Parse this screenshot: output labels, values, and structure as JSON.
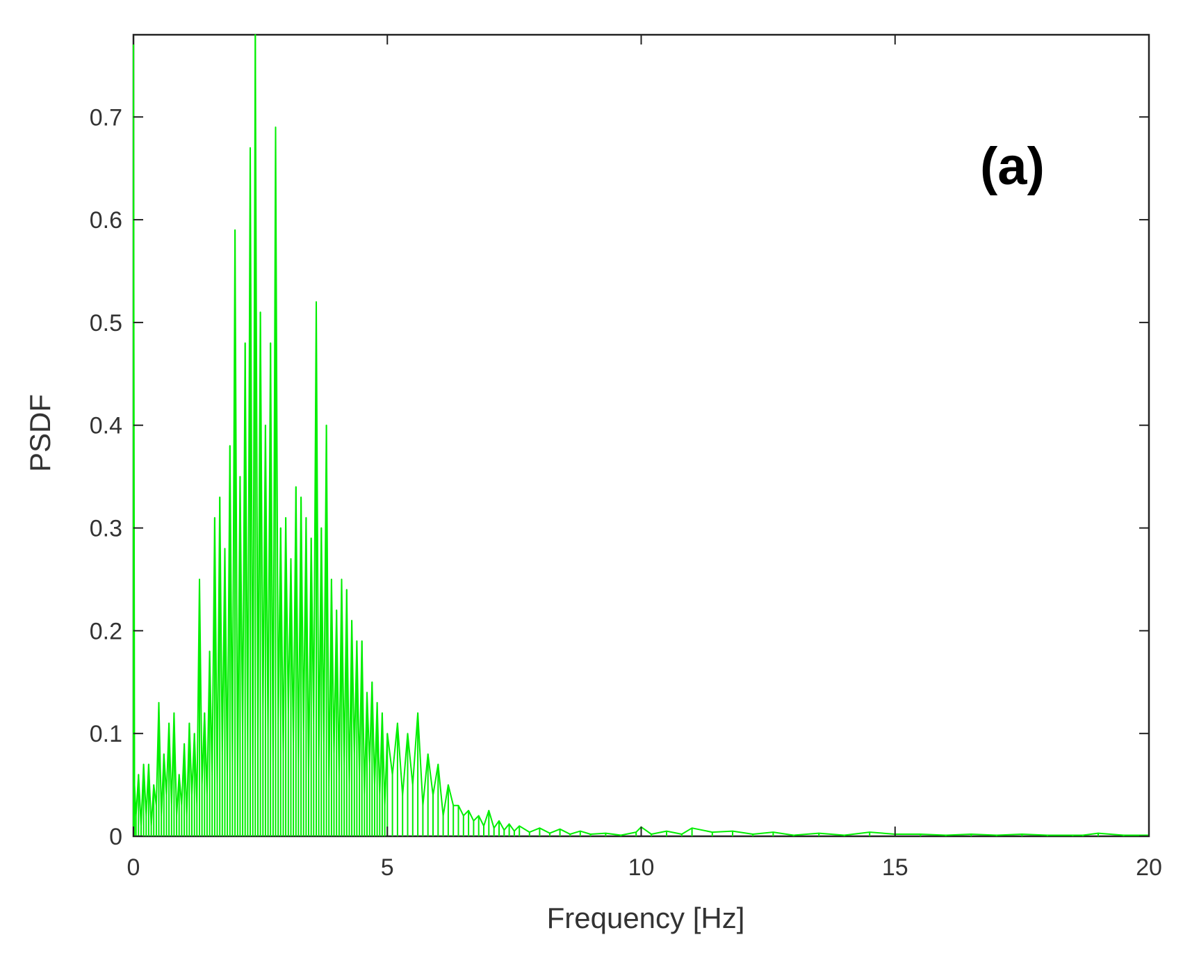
{
  "chart_data": {
    "type": "line",
    "title": "",
    "annotation": "(a)",
    "xlabel": "Frequency [Hz]",
    "ylabel": "PSDF",
    "xlim": [
      0,
      20
    ],
    "ylim": [
      0,
      0.78
    ],
    "grid": false,
    "x_ticks": [
      0,
      5,
      10,
      15,
      20
    ],
    "y_ticks": [
      0,
      0.1,
      0.2,
      0.3,
      0.4,
      0.5,
      0.6,
      0.7
    ],
    "x_tick_labels": [
      "0",
      "5",
      "10",
      "15",
      "20"
    ],
    "y_tick_labels": [
      "0",
      "0.1",
      "0.2",
      "0.3",
      "0.4",
      "0.5",
      "0.6",
      "0.7"
    ],
    "series": [
      {
        "color": "#00ee00",
        "x": [
          0,
          0.02,
          0.05,
          0.1,
          0.15,
          0.2,
          0.25,
          0.3,
          0.35,
          0.4,
          0.45,
          0.5,
          0.55,
          0.6,
          0.65,
          0.7,
          0.75,
          0.8,
          0.85,
          0.9,
          0.95,
          1.0,
          1.05,
          1.1,
          1.15,
          1.2,
          1.25,
          1.3,
          1.35,
          1.4,
          1.45,
          1.5,
          1.55,
          1.6,
          1.65,
          1.7,
          1.75,
          1.8,
          1.85,
          1.9,
          1.95,
          2.0,
          2.05,
          2.1,
          2.15,
          2.2,
          2.25,
          2.3,
          2.35,
          2.4,
          2.45,
          2.5,
          2.55,
          2.6,
          2.65,
          2.7,
          2.75,
          2.8,
          2.85,
          2.9,
          2.95,
          3.0,
          3.05,
          3.1,
          3.15,
          3.2,
          3.25,
          3.3,
          3.35,
          3.4,
          3.45,
          3.5,
          3.55,
          3.6,
          3.65,
          3.7,
          3.75,
          3.8,
          3.85,
          3.9,
          3.95,
          4.0,
          4.05,
          4.1,
          4.15,
          4.2,
          4.25,
          4.3,
          4.35,
          4.4,
          4.45,
          4.5,
          4.55,
          4.6,
          4.65,
          4.7,
          4.75,
          4.8,
          4.85,
          4.9,
          4.95,
          5.0,
          5.1,
          5.2,
          5.3,
          5.4,
          5.5,
          5.6,
          5.7,
          5.8,
          5.9,
          6.0,
          6.1,
          6.2,
          6.3,
          6.4,
          6.5,
          6.6,
          6.7,
          6.8,
          6.9,
          7.0,
          7.1,
          7.2,
          7.3,
          7.4,
          7.5,
          7.6,
          7.8,
          8.0,
          8.2,
          8.4,
          8.6,
          8.8,
          9.0,
          9.3,
          9.6,
          9.9,
          10.0,
          10.2,
          10.5,
          10.8,
          11.0,
          11.4,
          11.8,
          12.2,
          12.6,
          13.0,
          13.5,
          14.0,
          14.5,
          15.0,
          15.5,
          16.0,
          16.5,
          17.0,
          17.5,
          18.0,
          18.5,
          18.7,
          19.0,
          19.5,
          20.0
        ],
        "y": [
          0.78,
          0.05,
          0.02,
          0.06,
          0.01,
          0.07,
          0.02,
          0.07,
          0.01,
          0.05,
          0.03,
          0.13,
          0.02,
          0.08,
          0.04,
          0.11,
          0.03,
          0.12,
          0.02,
          0.06,
          0.03,
          0.09,
          0.02,
          0.11,
          0.04,
          0.1,
          0.03,
          0.25,
          0.05,
          0.12,
          0.04,
          0.18,
          0.06,
          0.31,
          0.05,
          0.33,
          0.08,
          0.28,
          0.06,
          0.38,
          0.07,
          0.59,
          0.05,
          0.35,
          0.1,
          0.48,
          0.08,
          0.67,
          0.06,
          0.78,
          0.09,
          0.51,
          0.12,
          0.4,
          0.1,
          0.48,
          0.07,
          0.69,
          0.11,
          0.3,
          0.08,
          0.31,
          0.12,
          0.27,
          0.09,
          0.34,
          0.07,
          0.33,
          0.1,
          0.31,
          0.06,
          0.29,
          0.11,
          0.52,
          0.07,
          0.3,
          0.09,
          0.4,
          0.05,
          0.25,
          0.08,
          0.22,
          0.06,
          0.25,
          0.07,
          0.24,
          0.05,
          0.21,
          0.08,
          0.19,
          0.06,
          0.19,
          0.04,
          0.14,
          0.07,
          0.15,
          0.05,
          0.13,
          0.04,
          0.12,
          0.03,
          0.1,
          0.06,
          0.11,
          0.04,
          0.1,
          0.05,
          0.12,
          0.03,
          0.08,
          0.04,
          0.07,
          0.02,
          0.05,
          0.03,
          0.03,
          0.02,
          0.025,
          0.015,
          0.02,
          0.01,
          0.025,
          0.008,
          0.015,
          0.006,
          0.012,
          0.005,
          0.01,
          0.004,
          0.008,
          0.003,
          0.007,
          0.002,
          0.005,
          0.002,
          0.003,
          0.001,
          0.004,
          0.009,
          0.002,
          0.005,
          0.002,
          0.008,
          0.004,
          0.005,
          0.002,
          0.004,
          0.001,
          0.003,
          0.001,
          0.004,
          0.002,
          0.002,
          0.001,
          0.002,
          0.001,
          0.002,
          0.001,
          0.001,
          0.001,
          0.003,
          0.001,
          0.001
        ]
      }
    ]
  }
}
